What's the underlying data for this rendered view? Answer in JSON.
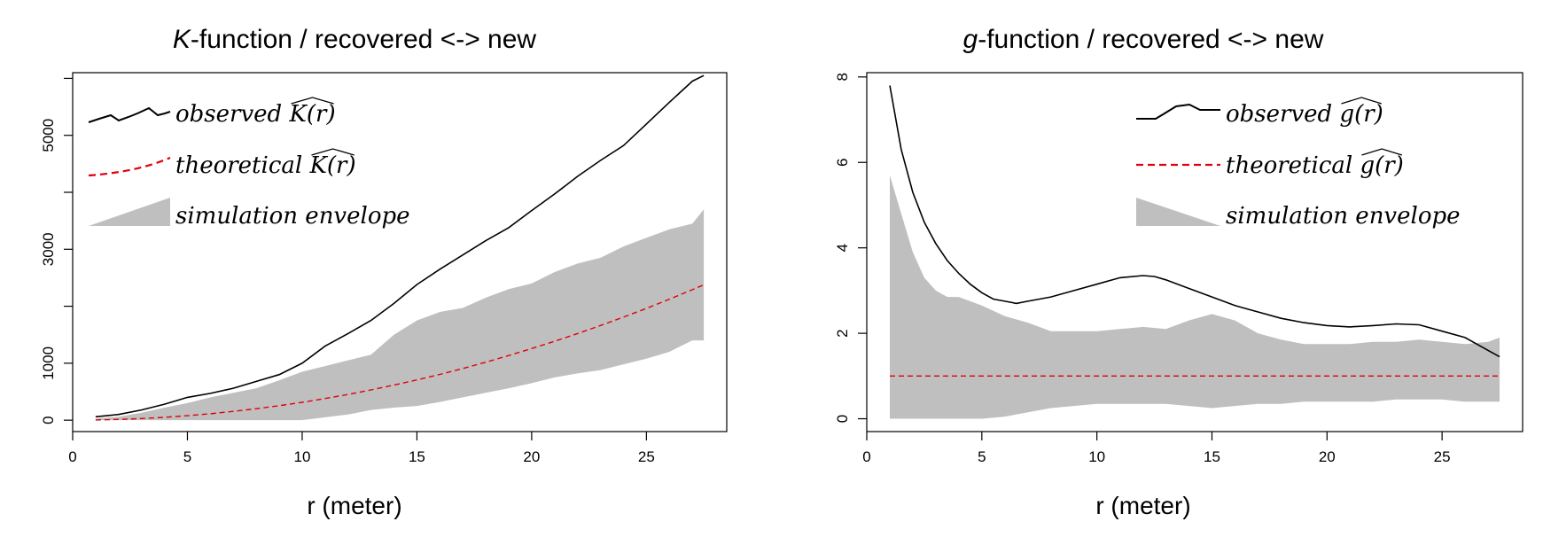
{
  "colors": {
    "observed": "#000000",
    "theoretical": "#e0000a",
    "envelope": "#bfbfbf"
  },
  "chart_data": [
    {
      "type": "line",
      "title_letter": "K",
      "title_rest": "-function / recovered <-> new",
      "xlabel": "r (meter)",
      "ylabel": "",
      "xlim": [
        0,
        28.5
      ],
      "ylim": [
        -200,
        6100
      ],
      "xticks": [
        0,
        5,
        10,
        15,
        20,
        25
      ],
      "yticks": [
        0,
        1000,
        3000,
        5000
      ],
      "yticks_minor": [
        2000,
        4000,
        6000
      ],
      "grid": false,
      "legend_position": "top-left",
      "legend": [
        "observed K(r)",
        "theoretical K(r)",
        "simulation envelope"
      ],
      "legend_hat": "K(r)",
      "series": [
        {
          "name": "observed K(r)",
          "style": "solid",
          "x": [
            1,
            2,
            3,
            4,
            5,
            6,
            7,
            8,
            9,
            10,
            11,
            12,
            13,
            14,
            15,
            16,
            17,
            18,
            19,
            20,
            21,
            22,
            23,
            24,
            25,
            26,
            27,
            27.5
          ],
          "values": [
            60,
            100,
            180,
            280,
            400,
            470,
            560,
            680,
            800,
            1000,
            1300,
            1520,
            1750,
            2050,
            2380,
            2650,
            2900,
            3150,
            3380,
            3680,
            3970,
            4280,
            4560,
            4820,
            5200,
            5580,
            5950,
            6050
          ]
        },
        {
          "name": "theoretical K(r)",
          "style": "dashed",
          "x": [
            1,
            2,
            3,
            4,
            5,
            6,
            7,
            8,
            9,
            10,
            11,
            12,
            13,
            14,
            15,
            16,
            17,
            18,
            19,
            20,
            21,
            22,
            23,
            24,
            25,
            26,
            27,
            27.5
          ],
          "values": [
            3,
            13,
            28,
            50,
            79,
            113,
            154,
            201,
            254,
            314,
            380,
            452,
            531,
            616,
            707,
            804,
            908,
            1018,
            1134,
            1257,
            1385,
            1521,
            1662,
            1810,
            1963,
            2124,
            2290,
            2376
          ]
        },
        {
          "name": "simulation envelope",
          "style": "band",
          "x": [
            1,
            2,
            3,
            4,
            5,
            6,
            7,
            8,
            9,
            10,
            11,
            12,
            13,
            14,
            15,
            16,
            17,
            18,
            19,
            20,
            21,
            22,
            23,
            24,
            25,
            26,
            27,
            27.5
          ],
          "lower": [
            0,
            0,
            0,
            0,
            0,
            0,
            0,
            0,
            0,
            0,
            50,
            100,
            180,
            220,
            250,
            320,
            400,
            480,
            560,
            650,
            750,
            820,
            880,
            980,
            1080,
            1200,
            1400,
            1400
          ],
          "upper": [
            30,
            60,
            130,
            220,
            300,
            400,
            480,
            560,
            700,
            850,
            950,
            1050,
            1150,
            1500,
            1750,
            1900,
            1970,
            2150,
            2300,
            2400,
            2600,
            2750,
            2850,
            3050,
            3200,
            3350,
            3450,
            3700
          ]
        }
      ]
    },
    {
      "type": "line",
      "title_letter": "g",
      "title_rest": "-function / recovered <-> new",
      "xlabel": "r (meter)",
      "ylabel": "",
      "xlim": [
        0,
        28.5
      ],
      "ylim": [
        -0.3,
        8.1
      ],
      "xticks": [
        0,
        5,
        10,
        15,
        20,
        25
      ],
      "yticks": [
        0,
        2,
        4,
        6,
        8
      ],
      "yticks_minor": [],
      "grid": false,
      "legend_position": "top-right",
      "legend": [
        "observed g(r)",
        "theoretical g(r)",
        "simulation envelope"
      ],
      "legend_hat": "g(r)",
      "series": [
        {
          "name": "observed g(r)",
          "style": "solid",
          "x": [
            1,
            1.5,
            2,
            2.5,
            3,
            3.5,
            4,
            4.5,
            5,
            5.5,
            6,
            6.5,
            7,
            8,
            9,
            10,
            11,
            12,
            12.5,
            13,
            14,
            15,
            16,
            17,
            18,
            19,
            20,
            21,
            22,
            23,
            24,
            25,
            26,
            27,
            27.5
          ],
          "values": [
            7.8,
            6.3,
            5.3,
            4.6,
            4.1,
            3.7,
            3.4,
            3.15,
            2.95,
            2.8,
            2.75,
            2.7,
            2.75,
            2.85,
            3.0,
            3.15,
            3.3,
            3.35,
            3.33,
            3.25,
            3.05,
            2.85,
            2.65,
            2.5,
            2.35,
            2.25,
            2.18,
            2.15,
            2.18,
            2.22,
            2.2,
            2.05,
            1.9,
            1.6,
            1.45
          ]
        },
        {
          "name": "theoretical g(r)",
          "style": "dashed",
          "x": [
            1,
            27.5
          ],
          "values": [
            1,
            1
          ]
        },
        {
          "name": "simulation envelope",
          "style": "band",
          "x": [
            1,
            1.5,
            2,
            2.5,
            3,
            3.5,
            4,
            5,
            6,
            7,
            8,
            9,
            10,
            11,
            12,
            13,
            14,
            15,
            16,
            17,
            18,
            19,
            20,
            21,
            22,
            23,
            24,
            25,
            26,
            27,
            27.5
          ],
          "lower": [
            0,
            0,
            0,
            0,
            0,
            0,
            0,
            0,
            0.05,
            0.15,
            0.25,
            0.3,
            0.35,
            0.35,
            0.35,
            0.35,
            0.3,
            0.25,
            0.3,
            0.35,
            0.35,
            0.4,
            0.4,
            0.4,
            0.4,
            0.45,
            0.45,
            0.45,
            0.4,
            0.4,
            0.4
          ],
          "upper": [
            5.7,
            4.8,
            3.9,
            3.3,
            3.0,
            2.85,
            2.85,
            2.65,
            2.4,
            2.25,
            2.05,
            2.05,
            2.05,
            2.1,
            2.15,
            2.1,
            2.3,
            2.45,
            2.3,
            2.0,
            1.85,
            1.75,
            1.75,
            1.75,
            1.8,
            1.8,
            1.85,
            1.8,
            1.75,
            1.8,
            1.9
          ]
        }
      ]
    }
  ]
}
